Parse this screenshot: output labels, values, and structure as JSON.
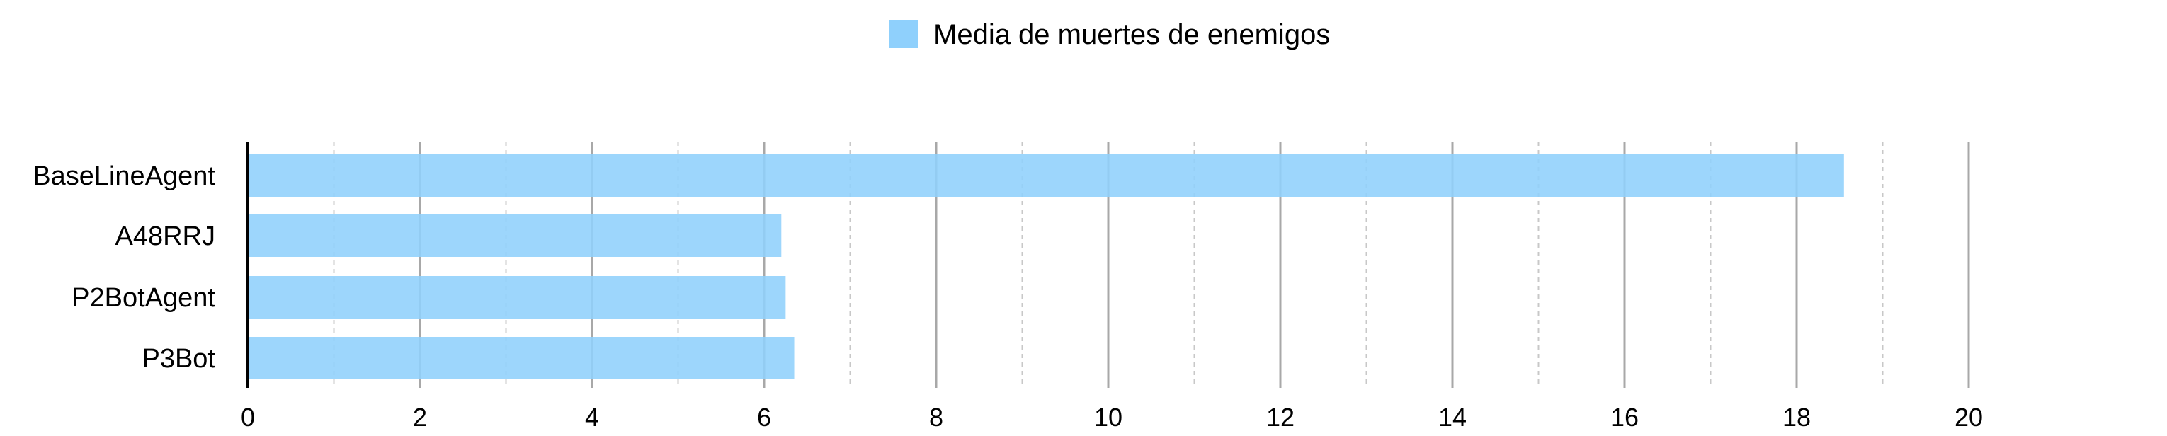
{
  "chart_data": {
    "type": "bar",
    "orientation": "horizontal",
    "categories": [
      "BaseLineAgent",
      "A48RRJ",
      "P2BotAgent",
      "P3Bot"
    ],
    "series": [
      {
        "name": "Media de muertes de enemigos",
        "values": [
          18.55,
          6.2,
          6.25,
          6.35
        ],
        "color": "#8fd0fc"
      }
    ],
    "xlim": [
      0,
      22
    ],
    "xticks": [
      0,
      2,
      4,
      6,
      8,
      10,
      12,
      14,
      16,
      18,
      20
    ],
    "minor_gridlines": [
      1,
      3,
      5,
      7,
      9,
      11,
      13,
      15,
      17,
      19
    ],
    "grid": true,
    "legend_position": "top-center",
    "colors": {
      "bar": "#8fd0fc",
      "major_grid": "#a8a8a8",
      "minor_grid": "#c8c8c8",
      "axis": "#000000"
    }
  }
}
